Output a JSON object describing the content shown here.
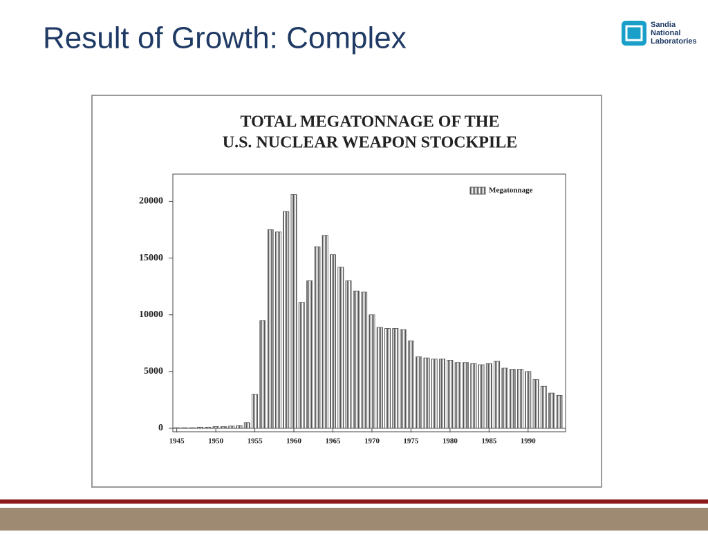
{
  "slide": {
    "title": "Result of Growth: Complex",
    "logo": [
      "Sandia",
      "National",
      "Laboratories"
    ]
  },
  "chart_data": {
    "type": "bar",
    "title": [
      "TOTAL MEGATONNAGE OF THE",
      "U.S. NUCLEAR WEAPON STOCKPILE"
    ],
    "x": [
      1945,
      1946,
      1947,
      1948,
      1949,
      1950,
      1951,
      1952,
      1953,
      1954,
      1955,
      1956,
      1957,
      1958,
      1959,
      1960,
      1961,
      1962,
      1963,
      1964,
      1965,
      1966,
      1967,
      1968,
      1969,
      1970,
      1971,
      1972,
      1973,
      1974,
      1975,
      1976,
      1977,
      1978,
      1979,
      1980,
      1981,
      1982,
      1983,
      1984,
      1985,
      1986,
      1987,
      1988,
      1989,
      1990,
      1991,
      1992,
      1993,
      1994
    ],
    "series": [
      {
        "name": "Megatonnage",
        "color": "#555555",
        "values": [
          50,
          50,
          50,
          100,
          100,
          150,
          150,
          200,
          250,
          500,
          3000,
          9500,
          17500,
          17300,
          19100,
          20600,
          11100,
          13000,
          16000,
          17000,
          15300,
          14200,
          13000,
          12100,
          12000,
          10000,
          8900,
          8800,
          8800,
          8700,
          7700,
          6300,
          6200,
          6100,
          6100,
          6000,
          5800,
          5800,
          5700,
          5600,
          5700,
          5900,
          5300,
          5200,
          5200,
          5000,
          4300,
          3700,
          3100,
          2900
        ]
      }
    ],
    "xlim": [
      1944.5,
      1994.8
    ],
    "xticks": [
      1945,
      1950,
      1955,
      1960,
      1965,
      1970,
      1975,
      1980,
      1985,
      1990
    ],
    "ylim": [
      0,
      22400
    ],
    "yticks": [
      0,
      5000,
      10000,
      15000,
      20000
    ],
    "legend": "upper right"
  }
}
